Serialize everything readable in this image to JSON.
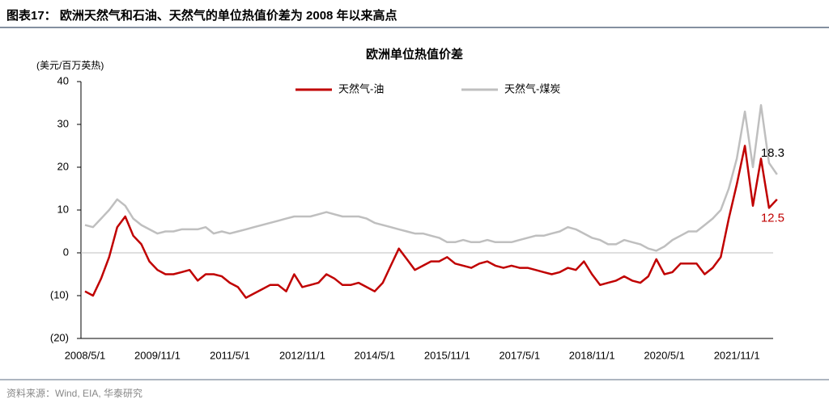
{
  "header": {
    "title": "图表17：  欧洲天然气和石油、天然气的单位热值价差为 2008 年以来高点"
  },
  "source": "资料来源：Wind, EIA,  华泰研究",
  "chart_data": {
    "type": "line",
    "title": "欧洲单位热值价差",
    "y_label": "(美元/百万英热)",
    "categories": [
      "2008/5/1",
      null,
      null,
      null,
      null,
      null,
      null,
      null,
      null,
      "2009/11/1",
      null,
      null,
      null,
      null,
      null,
      null,
      null,
      null,
      "2011/5/1",
      null,
      null,
      null,
      null,
      null,
      null,
      null,
      null,
      "2012/11/1",
      null,
      null,
      null,
      null,
      null,
      null,
      null,
      null,
      "2014/5/1",
      null,
      null,
      null,
      null,
      null,
      null,
      null,
      null,
      "2015/11/1",
      null,
      null,
      null,
      null,
      null,
      null,
      null,
      null,
      "2017/5/1",
      null,
      null,
      null,
      null,
      null,
      null,
      null,
      null,
      "2018/11/1",
      null,
      null,
      null,
      null,
      null,
      null,
      null,
      null,
      "2020/5/1",
      null,
      null,
      null,
      null,
      null,
      null,
      null,
      null,
      "2021/11/1",
      null,
      null,
      null,
      null,
      null
    ],
    "series": [
      {
        "name": "天然气-油",
        "color": "#c00000",
        "values": [
          -9,
          -10,
          -6,
          -1,
          6,
          8.5,
          4,
          2,
          -2,
          -4,
          -5,
          -5,
          -4.5,
          -4,
          -6.5,
          -5,
          -5,
          -5.5,
          -7,
          -8,
          -10.5,
          -9.5,
          -8.5,
          -7.5,
          -7.5,
          -9,
          -5,
          -8,
          -7.5,
          -7,
          -5,
          -6,
          -7.5,
          -7.5,
          -7,
          -8,
          -9,
          -7,
          -3,
          1,
          -1.5,
          -4,
          -3,
          -2,
          -2,
          -1,
          -2.5,
          -3,
          -3.5,
          -2.5,
          -2,
          -3,
          -3.5,
          -3,
          -3.5,
          -3.5,
          -4,
          -4.5,
          -5,
          -4.5,
          -3.5,
          -4,
          -2,
          -5,
          -7.5,
          -7,
          -6.5,
          -5.5,
          -6.5,
          -7,
          -5.5,
          -1.5,
          -5,
          -4.5,
          -2.5,
          -2.5,
          -2.5,
          -5,
          -3.5,
          -1,
          8,
          16,
          25,
          11,
          22,
          10.5,
          12.5
        ]
      },
      {
        "name": "天然气-煤炭",
        "color": "#bfbfbf",
        "values": [
          6.5,
          6,
          8,
          10,
          12.5,
          11,
          8,
          6.5,
          5.5,
          4.5,
          5,
          5,
          5.5,
          5.5,
          5.5,
          6,
          4.5,
          5,
          4.5,
          5,
          5.5,
          6,
          6.5,
          7,
          7.5,
          8,
          8.5,
          8.5,
          8.5,
          9,
          9.5,
          9,
          8.5,
          8.5,
          8.5,
          8,
          7,
          6.5,
          6,
          5.5,
          5,
          4.5,
          4.5,
          4,
          3.5,
          2.5,
          2.5,
          3,
          2.5,
          2.5,
          3,
          2.5,
          2.5,
          2.5,
          3,
          3.5,
          4,
          4,
          4.5,
          5,
          6,
          5.5,
          4.5,
          3.5,
          3,
          2,
          2,
          3,
          2.5,
          2,
          1,
          0.5,
          1.5,
          3,
          4,
          5,
          5,
          6.5,
          8,
          10,
          15,
          22,
          33,
          20,
          34.5,
          21,
          18.3
        ]
      }
    ],
    "annotations": [
      "18.3",
      "12.5"
    ],
    "ylim": [
      -20,
      40
    ],
    "yticks": [
      {
        "value": -20,
        "label": "(20)"
      },
      {
        "value": -10,
        "label": "(10)"
      },
      0,
      10,
      20,
      30,
      40
    ]
  }
}
